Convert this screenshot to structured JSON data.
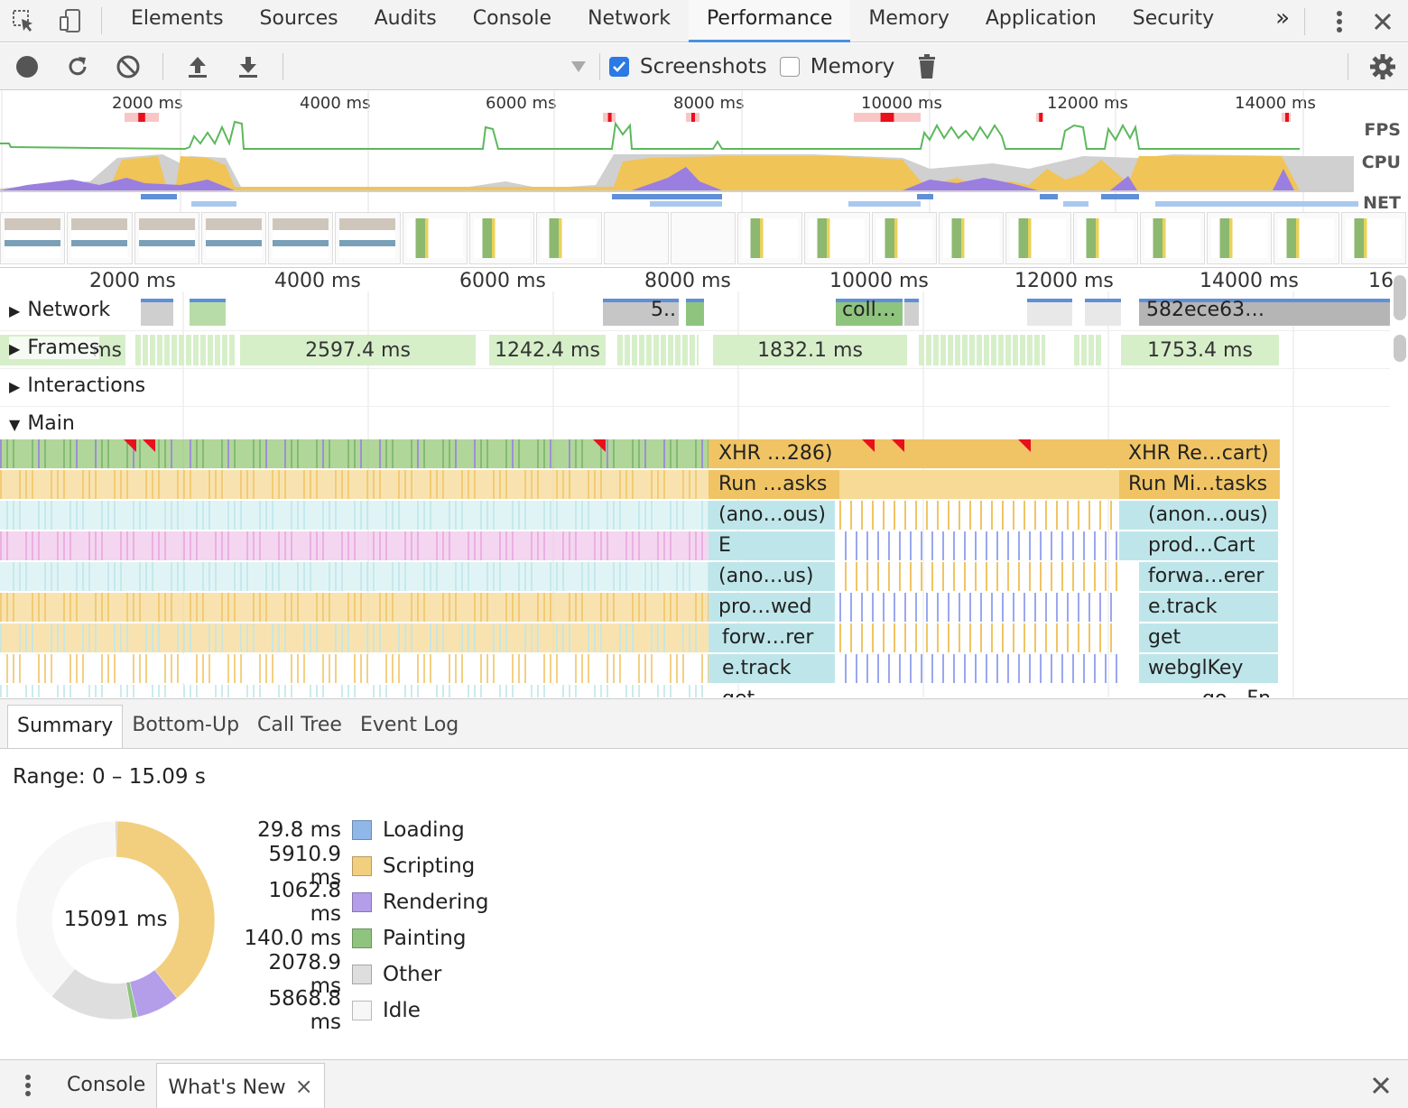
{
  "devtools": {
    "tabs": [
      "Elements",
      "Sources",
      "Audits",
      "Console",
      "Network",
      "Performance",
      "Memory",
      "Application",
      "Security"
    ],
    "active_tab": "Performance",
    "more_glyph": "»"
  },
  "toolbar": {
    "screenshots_label": "Screenshots",
    "screenshots_checked": true,
    "memory_label": "Memory",
    "memory_checked": false
  },
  "overview": {
    "ticks": [
      "2000 ms",
      "4000 ms",
      "6000 ms",
      "8000 ms",
      "10000 ms",
      "12000 ms",
      "14000 ms"
    ],
    "labels": {
      "fps": "FPS",
      "cpu": "CPU",
      "net": "NET"
    }
  },
  "timeline": {
    "ticks": [
      "2000 ms",
      "4000 ms",
      "6000 ms",
      "8000 ms",
      "10000 ms",
      "12000 ms",
      "14000 ms",
      "16"
    ],
    "tracks": {
      "network": "Network",
      "frames": "Frames",
      "interactions": "Interactions",
      "main": "Main"
    },
    "network_labels": [
      "5..",
      "coll…",
      "582ece63…"
    ],
    "frames": [
      "ms",
      "2597.4 ms",
      "1242.4 ms",
      "1832.1 ms",
      "1753.4 ms"
    ],
    "flame_mid": [
      "XHR …286)",
      "Run …asks",
      "(ano…ous)",
      "E",
      "(ano…us)",
      "pro…wed",
      "forw…rer",
      "e.track",
      "get"
    ],
    "flame_right": [
      "XHR Re…cart)",
      "Run Mi…tasks",
      "(anon…ous)",
      "prod…Cart",
      "forwa…erer",
      "e.track",
      "get",
      "webglKey",
      "…go…Fn"
    ]
  },
  "summary": {
    "tabs": [
      "Summary",
      "Bottom-Up",
      "Call Tree",
      "Event Log"
    ],
    "active_tab": "Summary",
    "range": "Range: 0 – 15.09 s",
    "total": "15091 ms",
    "categories": [
      {
        "value": "29.8 ms",
        "ms": 29.8,
        "label": "Loading",
        "color": "#8fb8e8"
      },
      {
        "value": "5910.9 ms",
        "ms": 5910.9,
        "label": "Scripting",
        "color": "#f2cf7e"
      },
      {
        "value": "1062.8 ms",
        "ms": 1062.8,
        "label": "Rendering",
        "color": "#b49eea"
      },
      {
        "value": "140.0 ms",
        "ms": 140.0,
        "label": "Painting",
        "color": "#8fc47f"
      },
      {
        "value": "2078.9 ms",
        "ms": 2078.9,
        "label": "Other",
        "color": "#dedede"
      },
      {
        "value": "5868.8 ms",
        "ms": 5868.8,
        "label": "Idle",
        "color": "#f7f7f7"
      }
    ]
  },
  "drawer": {
    "tabs": [
      "Console",
      "What's New"
    ],
    "active_tab": "What's New",
    "close_glyph": "×"
  }
}
